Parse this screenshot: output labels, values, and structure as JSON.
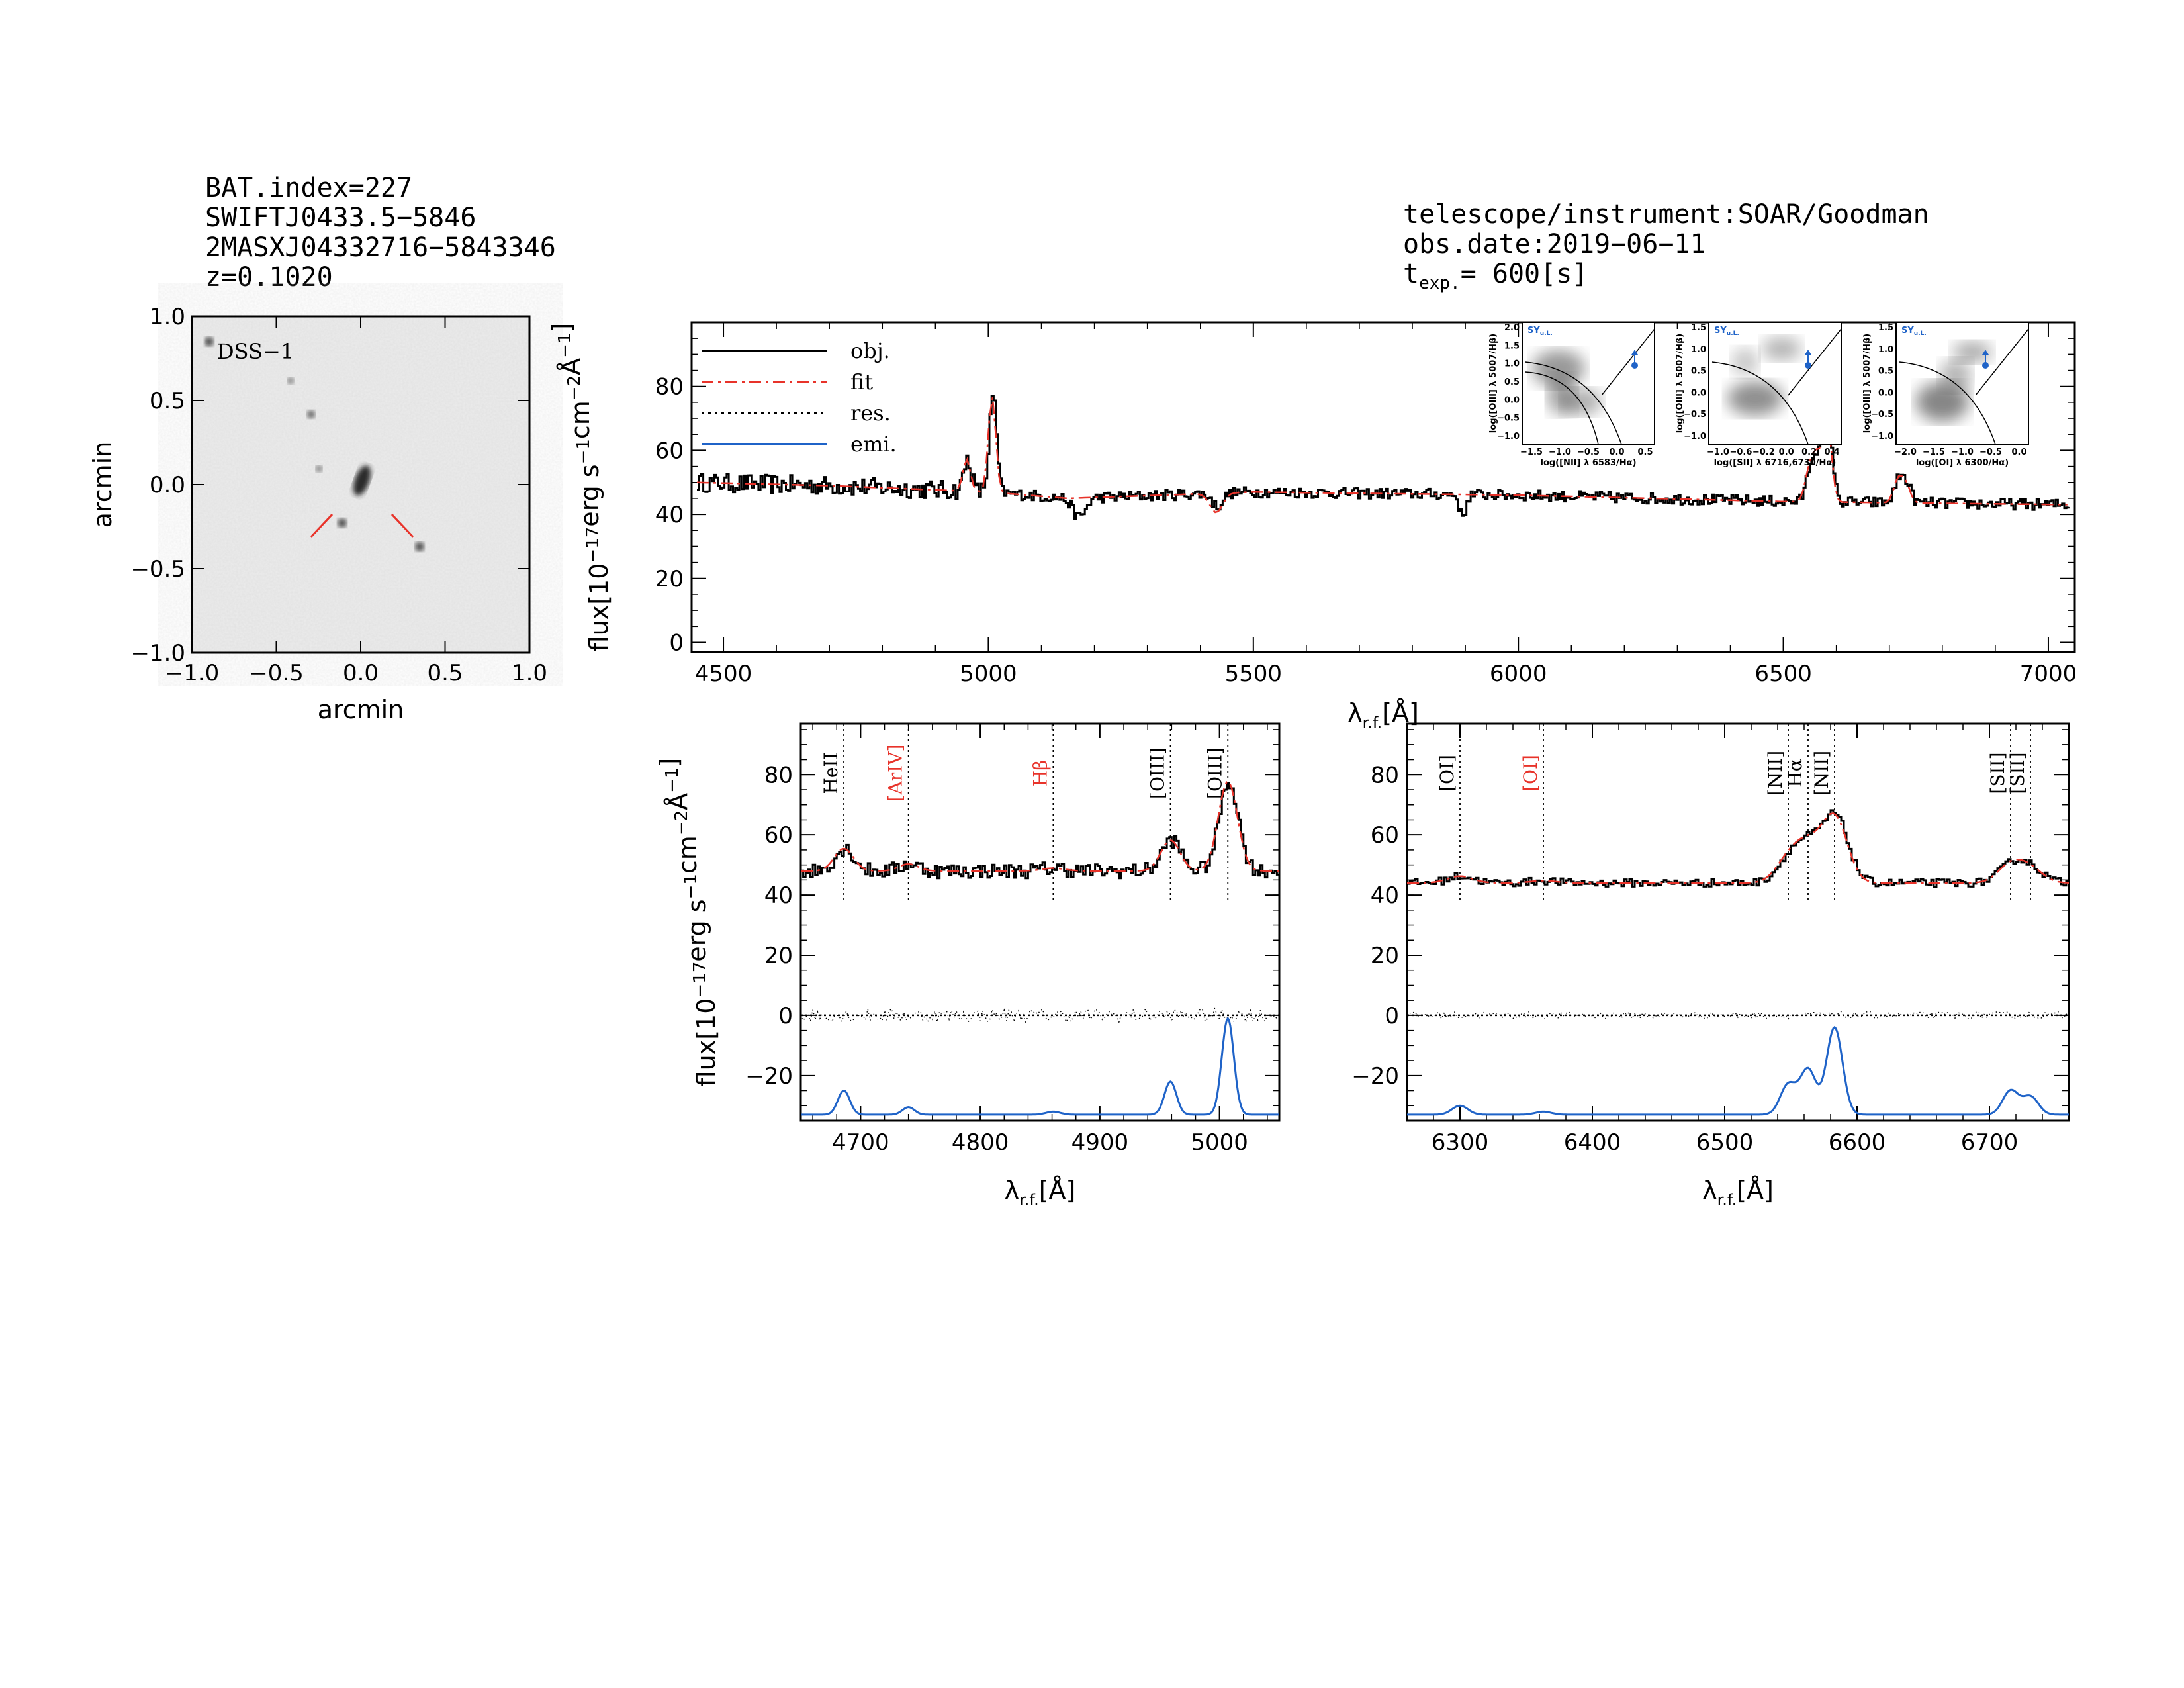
{
  "header": {
    "bat_index": "BAT.index=227",
    "swift_name": "SWIFTJ0433.5−5846",
    "counterpart": "2MASXJ04332716−5843346",
    "redshift": "z=0.1020",
    "telescope": "telescope/instrument:SOAR/Goodman",
    "obs_date": "obs.date:2019−06−11",
    "texp_prefix": "t",
    "texp_sub": "exp.",
    "texp_value": "=  600[s]"
  },
  "image_panel": {
    "label": "DSS−1",
    "xlabel": "arcmin",
    "ylabel": "arcmin",
    "xlim": [
      -1.0,
      1.0
    ],
    "ylim": [
      -1.0,
      1.0
    ],
    "ticks": [
      -1.0,
      -0.5,
      0.0,
      0.5,
      1.0
    ],
    "tick_labels": [
      "−1.0",
      "−0.5",
      "0.0",
      "0.5",
      "1.0"
    ],
    "marker_color": "#e8332a"
  },
  "colors": {
    "obj": "#000000",
    "fit": "#e8332a",
    "res": "#000000",
    "emi": "#1f63c8",
    "line_red": "#e8332a"
  },
  "chart_data": [
    {
      "type": "line",
      "name": "full_spectrum",
      "xlabel": "λr.f.[Å]",
      "ylabel": "flux[10⁻¹⁷erg s⁻¹cm⁻²Å⁻¹]",
      "xlim": [
        4440,
        7050
      ],
      "ylim": [
        -3,
        100
      ],
      "xticks": [
        4500,
        5000,
        5500,
        6000,
        6500,
        7000
      ],
      "yticks": [
        0,
        20,
        40,
        60,
        80
      ],
      "legend": [
        {
          "label": "obj.",
          "style": "solid",
          "color": "#000000"
        },
        {
          "label": "fit",
          "style": "dashdot",
          "color": "#e8332a"
        },
        {
          "label": "res.",
          "style": "dotted",
          "color": "#000000"
        },
        {
          "label": "emi.",
          "style": "solid",
          "color": "#1f63c8"
        }
      ],
      "legend_position": "top-left",
      "continuum_anchor_points": [
        [
          4450,
          50
        ],
        [
          4700,
          49
        ],
        [
          5000,
          47
        ],
        [
          5150,
          45
        ],
        [
          5500,
          47
        ],
        [
          6000,
          46
        ],
        [
          6500,
          44
        ],
        [
          7050,
          43
        ]
      ],
      "emission_lines": [
        {
          "center": 4959,
          "amp": 10,
          "sigma": 7
        },
        {
          "center": 5007,
          "amp": 30,
          "sigma": 7
        },
        {
          "center": 6548,
          "amp": 8,
          "sigma": 8
        },
        {
          "center": 6563,
          "amp": 14,
          "sigma": 9
        },
        {
          "center": 6583,
          "amp": 25,
          "sigma": 8
        },
        {
          "center": 6716,
          "amp": 7,
          "sigma": 8
        },
        {
          "center": 6731,
          "amp": 6,
          "sigma": 8
        }
      ],
      "absorption_features": [
        {
          "center": 5170,
          "depth": 6,
          "sigma": 12
        },
        {
          "center": 5893,
          "depth": 7,
          "sigma": 6
        },
        {
          "center": 5430,
          "depth": 4,
          "sigma": 10
        }
      ]
    },
    {
      "type": "line",
      "name": "hbeta_oiii_zoom",
      "xlabel": "λr.f.[Å]",
      "ylabel": "flux[10⁻¹⁷erg s⁻¹cm⁻²Å⁻¹]",
      "xlim": [
        4650,
        5050
      ],
      "ylim": [
        -35,
        97
      ],
      "xticks": [
        4700,
        4800,
        4900,
        5000
      ],
      "yticks": [
        -20,
        0,
        20,
        40,
        60,
        80
      ],
      "line_markers": [
        {
          "label": "HeII",
          "wave": 4686,
          "color": "#000000"
        },
        {
          "label": "[ArIV]",
          "wave": 4740,
          "color": "#e8332a"
        },
        {
          "label": "Hβ",
          "wave": 4861,
          "color": "#e8332a"
        },
        {
          "label": "[OIII]",
          "wave": 4959,
          "color": "#000000"
        },
        {
          "label": "[OIII]",
          "wave": 5007,
          "color": "#000000"
        }
      ],
      "emission_components": [
        {
          "center": 4686,
          "amp": 8,
          "sigma": 5
        },
        {
          "center": 4740,
          "amp": 2.5,
          "sigma": 5
        },
        {
          "center": 4861,
          "amp": 1,
          "sigma": 6
        },
        {
          "center": 4959,
          "amp": 11,
          "sigma": 5
        },
        {
          "center": 5007,
          "amp": 32,
          "sigma": 5
        }
      ],
      "continuum_level": 48,
      "emission_baseline": -33
    },
    {
      "type": "line",
      "name": "halpha_nii_zoom",
      "xlabel": "λr.f.[Å]",
      "ylabel": "",
      "xlim": [
        6260,
        6760
      ],
      "ylim": [
        -35,
        97
      ],
      "xticks": [
        6300,
        6400,
        6500,
        6600,
        6700
      ],
      "yticks": [
        -20,
        0,
        20,
        40,
        60,
        80
      ],
      "line_markers": [
        {
          "label": "[OI]",
          "wave": 6300,
          "color": "#000000"
        },
        {
          "label": "[OI]",
          "wave": 6363,
          "color": "#e8332a"
        },
        {
          "label": "[NII]",
          "wave": 6548,
          "color": "#000000"
        },
        {
          "label": "Hα",
          "wave": 6563,
          "color": "#000000"
        },
        {
          "label": "[NII]",
          "wave": 6583,
          "color": "#000000"
        },
        {
          "label": "[SII]",
          "wave": 6716,
          "color": "#000000"
        },
        {
          "label": "[SII]",
          "wave": 6731,
          "color": "#000000"
        }
      ],
      "emission_components": [
        {
          "center": 6300,
          "amp": 3,
          "sigma": 6
        },
        {
          "center": 6363,
          "amp": 1,
          "sigma": 6
        },
        {
          "center": 6548,
          "amp": 10,
          "sigma": 6
        },
        {
          "center": 6563,
          "amp": 15,
          "sigma": 6
        },
        {
          "center": 6583,
          "amp": 29,
          "sigma": 6
        },
        {
          "center": 6716,
          "amp": 8,
          "sigma": 6
        },
        {
          "center": 6731,
          "amp": 6,
          "sigma": 6
        }
      ],
      "continuum_level": 44,
      "emission_baseline": -33
    }
  ],
  "bpt_insets": [
    {
      "xlabel": "log([NII] λ 6583/Hα)",
      "ylabel": "log([OIII] λ 5007/Hβ)",
      "xticks": [
        "−1.5",
        "−1.0",
        "−0.5",
        "0.0",
        "0.5"
      ],
      "yticks": [
        "−1.0",
        "−0.5",
        "0.0",
        "0.5",
        "1.0",
        "1.5",
        "2.0"
      ],
      "tag": "SY",
      "tag_sub": "u.L."
    },
    {
      "xlabel": "log([SII] λ 6716,6730/Hα)",
      "ylabel": "log([OIII] λ 5007/Hβ)",
      "xticks": [
        "−1.0",
        "−0.6",
        "−0.2",
        "0.0",
        "0.2",
        "0.4"
      ],
      "yticks": [
        "−1.0",
        "−0.5",
        "0.0",
        "0.5",
        "1.0",
        "1.5"
      ],
      "tag": "SY",
      "tag_sub": "u.L."
    },
    {
      "xlabel": "log([OI] λ 6300/Hα)",
      "ylabel": "log([OIII] λ 5007/Hβ)",
      "xticks": [
        "−2.0",
        "−1.5",
        "−1.0",
        "−0.5",
        "0.0"
      ],
      "yticks": [
        "−1.0",
        "−0.5",
        "0.0",
        "0.5",
        "1.0",
        "1.5"
      ],
      "tag": "SY",
      "tag_sub": "u.L."
    }
  ]
}
